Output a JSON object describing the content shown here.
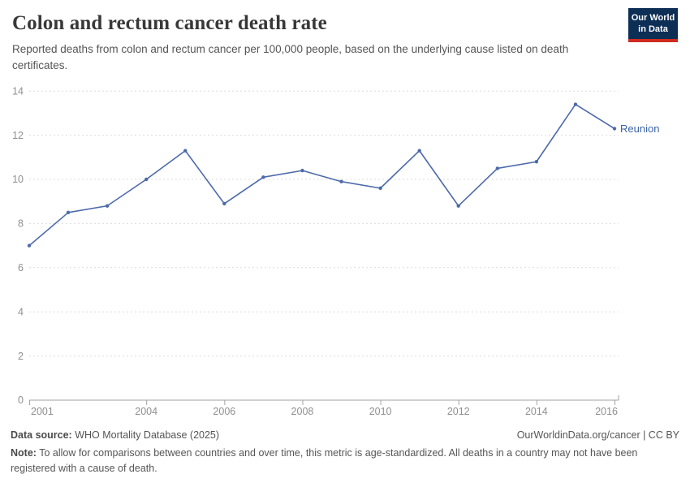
{
  "header": {
    "title": "Colon and rectum cancer death rate",
    "subtitle": "Reported deaths from colon and rectum cancer per 100,000 people, based on the underlying cause listed on death certificates."
  },
  "logo": {
    "line1": "Our World",
    "line2": "in Data",
    "bg_color": "#0d2e55",
    "accent_color": "#cf2b1f"
  },
  "chart_data": {
    "type": "line",
    "title": "Colon and rectum cancer death rate",
    "x": [
      2001,
      2002,
      2003,
      2004,
      2005,
      2006,
      2007,
      2008,
      2009,
      2010,
      2011,
      2012,
      2013,
      2014,
      2015,
      2016
    ],
    "series": [
      {
        "name": "Reunion",
        "values": [
          7.0,
          8.5,
          8.8,
          10.0,
          11.3,
          8.9,
          10.1,
          10.4,
          9.9,
          9.6,
          11.3,
          8.8,
          10.5,
          10.8,
          13.4,
          12.3
        ],
        "color": "#4d6aaa",
        "label_color": "#3d64a5"
      }
    ],
    "xlabel": "",
    "ylabel": "",
    "ylim": [
      0,
      14
    ],
    "yticks": [
      0,
      2,
      4,
      6,
      8,
      10,
      12,
      14
    ],
    "xticks": [
      2001,
      2004,
      2006,
      2008,
      2010,
      2012,
      2014,
      2016
    ],
    "grid": "horizontal-dashed",
    "legend": "end-of-line-label",
    "axis_color": "#a3a3a3",
    "grid_color": "#dcdcdc",
    "tick_label_color": "#8f8f8f"
  },
  "footer": {
    "source_label": "Data source:",
    "source_text": " WHO Mortality Database (2025)",
    "credit": "OurWorldinData.org/cancer | CC BY",
    "note_label": "Note:",
    "note_text": " To allow for comparisons between countries and over time, this metric is age-standardized. All deaths in a country may not have been registered with a cause of death."
  }
}
